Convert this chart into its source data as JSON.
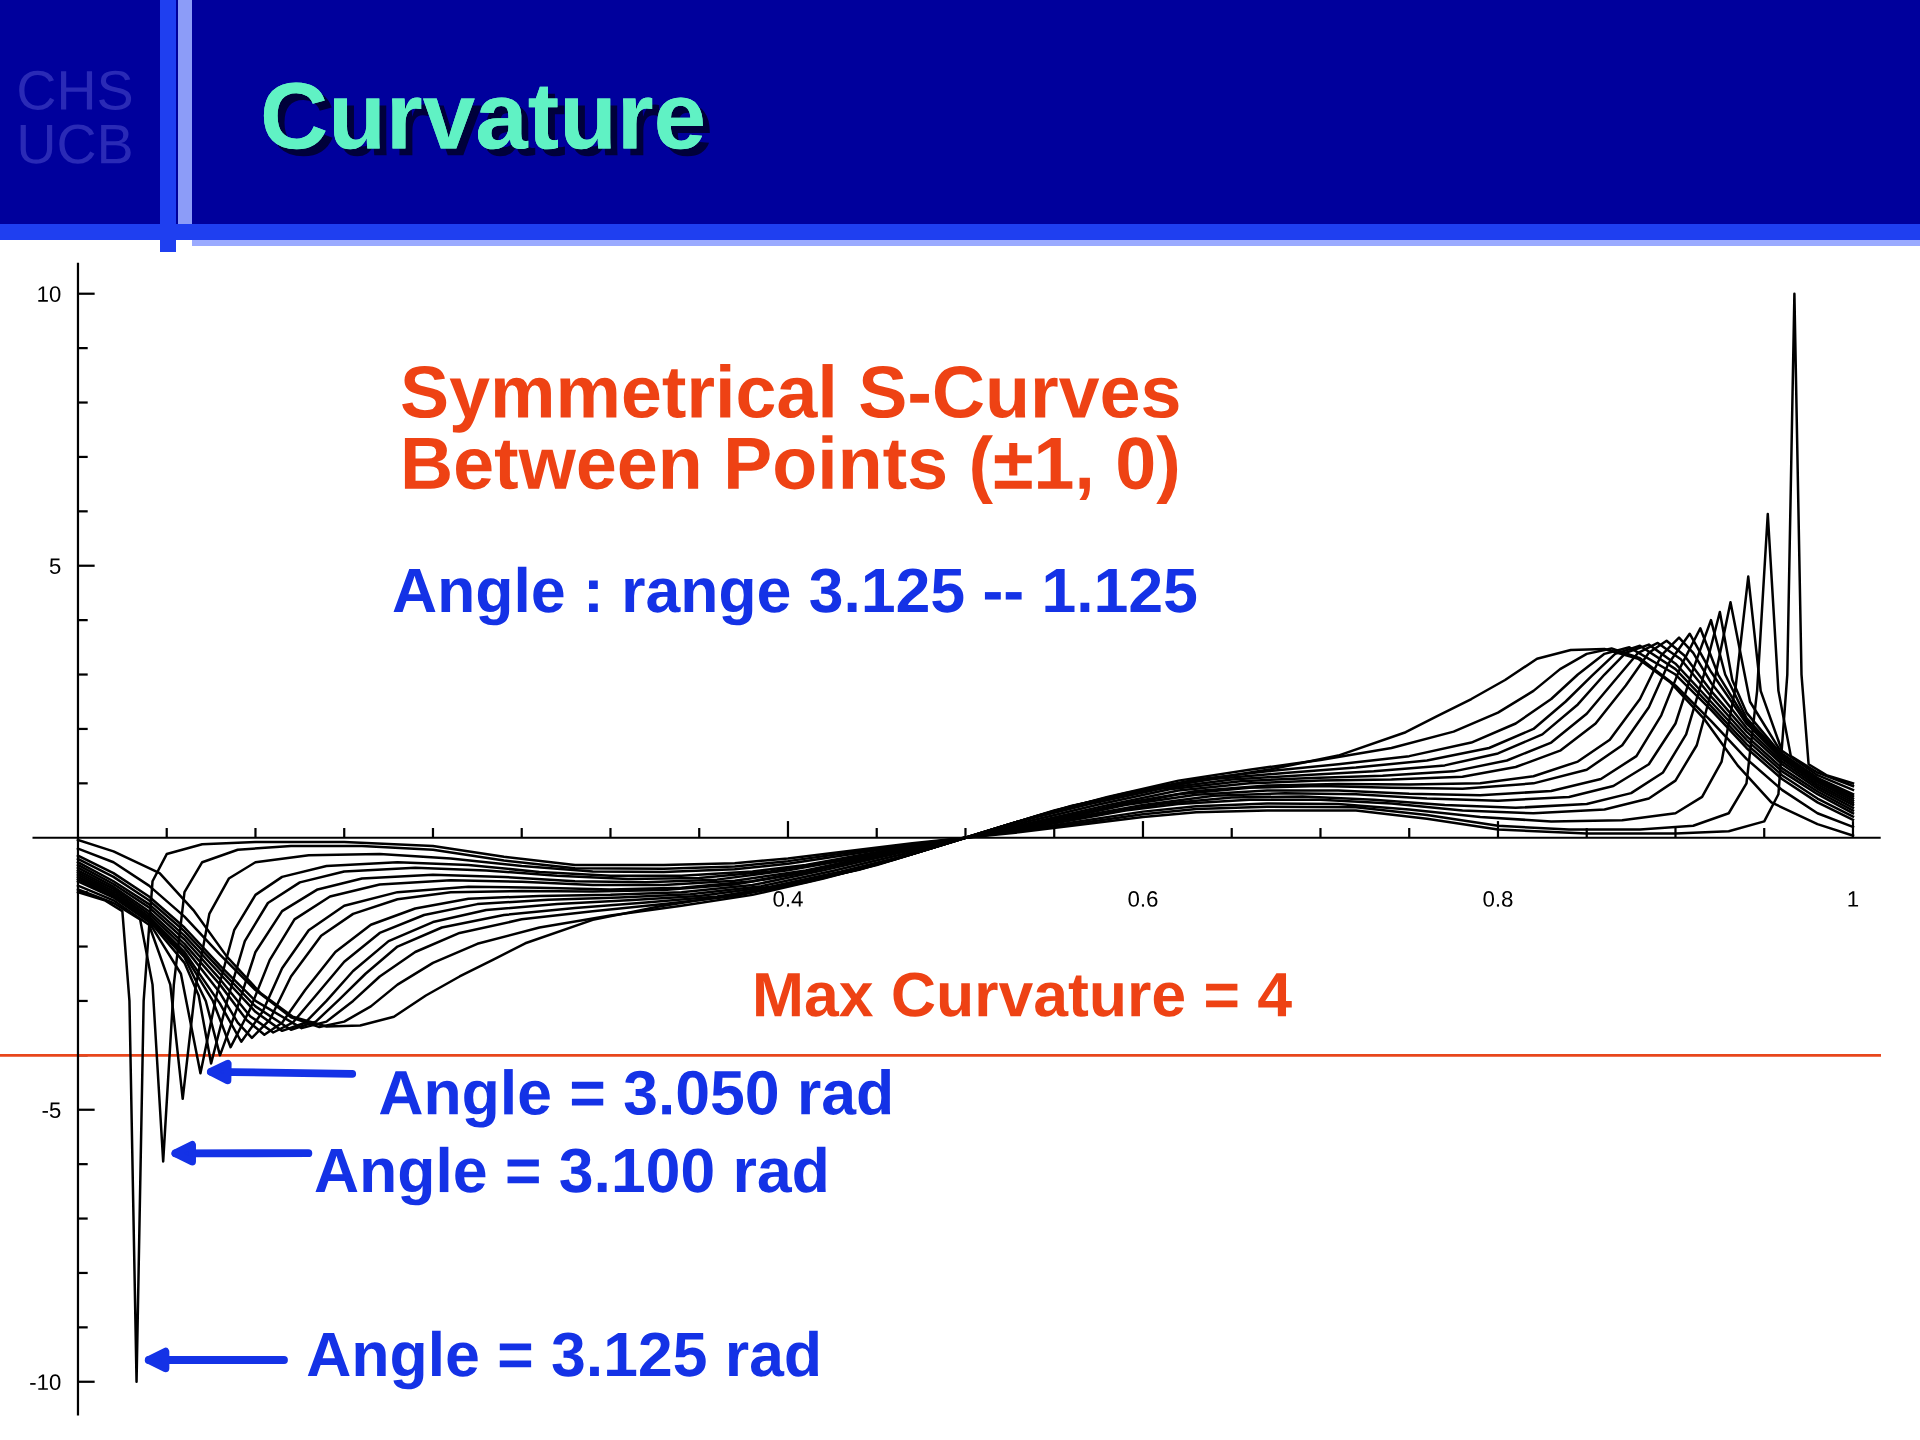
{
  "chart_data": {
    "type": "line",
    "title": "Curvature",
    "subtitle": "Symmetrical S-Curves\nBetween Points (±1, 0)",
    "annotations": [
      "Angle : range 3.125 -- 1.125",
      "Max Curvature = 4",
      "CHS\nUCB",
      {
        "text": "Angle = 3.050 rad",
        "x": 0.07,
        "y": -4.3
      },
      {
        "text": "Angle = 3.100 rad",
        "x": 0.05,
        "y": -5.8
      },
      {
        "text": "Angle = 3.125 rad",
        "x": 0.035,
        "y": -9.6
      }
    ],
    "xlim": [
      -0.025,
      1.015
    ],
    "ylim": [
      -10.6,
      10.55
    ],
    "xticks": [
      {
        "value": 0.05,
        "label": null
      },
      {
        "value": 0.1,
        "label": null
      },
      {
        "value": 0.15,
        "label": null
      },
      {
        "value": 0.2,
        "label": null
      },
      {
        "value": 0.25,
        "label": null
      },
      {
        "value": 0.3,
        "label": null
      },
      {
        "value": 0.35,
        "label": null
      },
      0.4,
      {
        "value": 0.45,
        "label": null
      },
      {
        "value": 0.5,
        "label": null
      },
      {
        "value": 0.55,
        "label": null
      },
      0.6,
      {
        "value": 0.65,
        "label": null
      },
      {
        "value": 0.7,
        "label": null
      },
      {
        "value": 0.75,
        "label": null
      },
      0.8,
      {
        "value": 0.85,
        "label": null
      },
      {
        "value": 0.9,
        "label": null
      },
      {
        "value": 0.95,
        "label": null
      },
      1
    ],
    "yticks": [
      -10,
      {
        "value": -9,
        "label": null
      },
      {
        "value": -8,
        "label": null
      },
      {
        "value": -7,
        "label": null
      },
      {
        "value": -6,
        "label": null
      },
      -5,
      {
        "value": -4,
        "label": null
      },
      {
        "value": -3,
        "label": null
      },
      {
        "value": -2,
        "label": null
      },
      {
        "value": -1,
        "label": null
      },
      {
        "value": 1,
        "label": null
      },
      {
        "value": 2,
        "label": null
      },
      {
        "value": 3,
        "label": null
      },
      {
        "value": 4,
        "label": null
      },
      5,
      {
        "value": 6,
        "label": null
      },
      {
        "value": 7,
        "label": null
      },
      {
        "value": 8,
        "label": null
      },
      {
        "value": 9,
        "label": null
      },
      10
    ],
    "ref_lines": [
      {
        "axis": "y",
        "value": -4,
        "color": "#e8461c"
      }
    ],
    "series": [
      {
        "color": "#000000",
        "x": [
          0,
          0.015,
          0.025,
          0.029,
          0.033,
          0.037,
          0.042,
          0.05,
          0.07,
          0.1,
          0.15,
          0.2,
          0.24,
          0.28,
          0.33,
          0.37,
          0.4,
          0.44,
          0.47,
          0.5,
          0.53,
          0.56,
          0.6,
          0.63,
          0.67,
          0.72,
          0.76,
          0.8,
          0.85,
          0.9,
          0.93,
          0.95,
          0.958,
          0.963,
          0.967,
          0.971,
          0.975,
          0.985,
          1
        ],
        "values": [
          -1.0,
          -1.15,
          -1.35,
          -3.0,
          -10.0,
          -3.0,
          -0.8,
          -0.3,
          -0.12,
          -0.08,
          -0.08,
          -0.15,
          -0.35,
          -0.5,
          -0.5,
          -0.47,
          -0.38,
          -0.22,
          -0.1,
          0,
          0.1,
          0.22,
          0.38,
          0.47,
          0.5,
          0.5,
          0.35,
          0.15,
          0.08,
          0.08,
          0.12,
          0.3,
          0.8,
          3.0,
          10.0,
          3.0,
          1.35,
          1.15,
          1.0
        ]
      },
      {
        "color": "#000000",
        "x": [
          0,
          0.02,
          0.035,
          0.042,
          0.048,
          0.054,
          0.06,
          0.07,
          0.09,
          0.12,
          0.16,
          0.2,
          0.24,
          0.28,
          0.33,
          0.37,
          0.4,
          0.44,
          0.47,
          0.5,
          0.53,
          0.56,
          0.6,
          0.63,
          0.67,
          0.72,
          0.76,
          0.8,
          0.84,
          0.88,
          0.91,
          0.93,
          0.94,
          0.946,
          0.952,
          0.958,
          0.965,
          0.98,
          1
        ],
        "values": [
          -0.95,
          -1.2,
          -1.5,
          -2.7,
          -5.95,
          -2.7,
          -1.0,
          -0.45,
          -0.22,
          -0.15,
          -0.15,
          -0.22,
          -0.42,
          -0.56,
          -0.57,
          -0.53,
          -0.43,
          -0.25,
          -0.12,
          0,
          0.12,
          0.25,
          0.43,
          0.53,
          0.57,
          0.56,
          0.42,
          0.22,
          0.15,
          0.15,
          0.22,
          0.45,
          1.0,
          2.7,
          5.95,
          2.7,
          1.5,
          1.2,
          0.95
        ]
      },
      {
        "color": "#000000",
        "x": [
          0,
          0.02,
          0.04,
          0.052,
          0.059,
          0.066,
          0.074,
          0.085,
          0.1,
          0.13,
          0.17,
          0.21,
          0.25,
          0.29,
          0.33,
          0.37,
          0.4,
          0.44,
          0.47,
          0.5,
          0.53,
          0.56,
          0.6,
          0.63,
          0.67,
          0.71,
          0.75,
          0.79,
          0.83,
          0.87,
          0.9,
          0.915,
          0.926,
          0.934,
          0.941,
          0.948,
          0.96,
          0.98,
          1
        ],
        "values": [
          -0.88,
          -1.15,
          -1.6,
          -2.7,
          -4.8,
          -2.8,
          -1.4,
          -0.75,
          -0.45,
          -0.32,
          -0.3,
          -0.38,
          -0.52,
          -0.62,
          -0.63,
          -0.58,
          -0.48,
          -0.28,
          -0.13,
          0,
          0.13,
          0.28,
          0.48,
          0.58,
          0.63,
          0.62,
          0.52,
          0.38,
          0.3,
          0.32,
          0.45,
          0.75,
          1.4,
          2.8,
          4.8,
          2.7,
          1.6,
          1.15,
          0.88
        ]
      },
      {
        "color": "#000000",
        "x": [
          0,
          0.02,
          0.04,
          0.058,
          0.069,
          0.078,
          0.088,
          0.1,
          0.115,
          0.14,
          0.18,
          0.22,
          0.26,
          0.3,
          0.34,
          0.38,
          0.41,
          0.44,
          0.47,
          0.5,
          0.53,
          0.56,
          0.59,
          0.62,
          0.66,
          0.7,
          0.74,
          0.78,
          0.82,
          0.86,
          0.885,
          0.9,
          0.912,
          0.922,
          0.931,
          0.942,
          0.96,
          0.98,
          1
        ],
        "values": [
          -0.8,
          -1.1,
          -1.55,
          -2.5,
          -4.33,
          -2.9,
          -1.7,
          -1.05,
          -0.72,
          -0.52,
          -0.45,
          -0.5,
          -0.63,
          -0.7,
          -0.7,
          -0.62,
          -0.5,
          -0.32,
          -0.15,
          0,
          0.15,
          0.32,
          0.5,
          0.62,
          0.7,
          0.7,
          0.63,
          0.5,
          0.45,
          0.52,
          0.72,
          1.05,
          1.7,
          2.9,
          4.33,
          2.5,
          1.55,
          1.1,
          0.8
        ]
      },
      {
        "color": "#000000",
        "x": [
          0,
          0.02,
          0.04,
          0.06,
          0.068,
          0.075,
          0.084,
          0.094,
          0.107,
          0.125,
          0.15,
          0.19,
          0.23,
          0.27,
          0.31,
          0.35,
          0.39,
          0.43,
          0.47,
          0.5,
          0.53,
          0.57,
          0.61,
          0.65,
          0.69,
          0.73,
          0.77,
          0.81,
          0.85,
          0.875,
          0.893,
          0.906,
          0.916,
          0.925,
          0.932,
          0.94,
          0.96,
          0.98,
          1
        ],
        "values": [
          -0.76,
          -1.08,
          -1.52,
          -2.3,
          -2.9,
          -4.15,
          -3.0,
          -1.9,
          -1.2,
          -0.82,
          -0.62,
          -0.55,
          -0.6,
          -0.7,
          -0.76,
          -0.74,
          -0.62,
          -0.4,
          -0.16,
          0,
          0.16,
          0.4,
          0.62,
          0.74,
          0.76,
          0.7,
          0.6,
          0.55,
          0.62,
          0.82,
          1.2,
          1.9,
          3.0,
          4.15,
          2.9,
          2.3,
          1.52,
          1.08,
          0.76
        ]
      },
      {
        "color": "#000000",
        "x": [
          0,
          0.02,
          0.04,
          0.06,
          0.072,
          0.08,
          0.09,
          0.1,
          0.115,
          0.135,
          0.16,
          0.2,
          0.24,
          0.28,
          0.32,
          0.36,
          0.4,
          0.44,
          0.47,
          0.5,
          0.53,
          0.56,
          0.6,
          0.64,
          0.68,
          0.72,
          0.76,
          0.8,
          0.84,
          0.865,
          0.885,
          0.9,
          0.91,
          0.92,
          0.928,
          0.94,
          0.96,
          0.98,
          1
        ],
        "values": [
          -0.72,
          -1.05,
          -1.5,
          -2.2,
          -3.0,
          -4.0,
          -3.1,
          -2.1,
          -1.35,
          -0.95,
          -0.75,
          -0.68,
          -0.72,
          -0.8,
          -0.82,
          -0.77,
          -0.6,
          -0.37,
          -0.17,
          0,
          0.17,
          0.37,
          0.6,
          0.77,
          0.82,
          0.8,
          0.72,
          0.68,
          0.75,
          0.95,
          1.35,
          2.1,
          3.1,
          4.0,
          3.0,
          2.2,
          1.5,
          1.05,
          0.72
        ]
      },
      {
        "color": "#000000",
        "x": [
          0,
          0.02,
          0.04,
          0.06,
          0.076,
          0.086,
          0.097,
          0.108,
          0.122,
          0.142,
          0.17,
          0.21,
          0.25,
          0.29,
          0.33,
          0.37,
          0.41,
          0.45,
          0.5,
          0.55,
          0.59,
          0.63,
          0.67,
          0.71,
          0.75,
          0.79,
          0.83,
          0.858,
          0.878,
          0.892,
          0.903,
          0.914,
          0.924,
          0.94,
          0.96,
          0.98,
          1
        ],
        "values": [
          -0.68,
          -1.02,
          -1.48,
          -2.15,
          -3.0,
          -3.85,
          -3.15,
          -2.25,
          -1.5,
          -1.08,
          -0.86,
          -0.78,
          -0.81,
          -0.87,
          -0.87,
          -0.79,
          -0.6,
          -0.32,
          0,
          0.32,
          0.6,
          0.79,
          0.87,
          0.87,
          0.81,
          0.78,
          0.86,
          1.08,
          1.5,
          2.25,
          3.15,
          3.85,
          3.0,
          2.15,
          1.48,
          1.02,
          0.68
        ]
      },
      {
        "color": "#000000",
        "x": [
          0,
          0.02,
          0.04,
          0.06,
          0.08,
          0.092,
          0.104,
          0.115,
          0.13,
          0.15,
          0.18,
          0.22,
          0.26,
          0.3,
          0.34,
          0.38,
          0.42,
          0.46,
          0.5,
          0.54,
          0.58,
          0.62,
          0.66,
          0.7,
          0.74,
          0.78,
          0.82,
          0.85,
          0.87,
          0.885,
          0.896,
          0.908,
          0.92,
          0.94,
          0.96,
          0.98,
          1
        ],
        "values": [
          -0.64,
          -0.98,
          -1.45,
          -2.1,
          -3.05,
          -3.75,
          -3.2,
          -2.4,
          -1.7,
          -1.25,
          -1.0,
          -0.9,
          -0.92,
          -0.95,
          -0.92,
          -0.8,
          -0.55,
          -0.27,
          0,
          0.27,
          0.55,
          0.8,
          0.92,
          0.95,
          0.92,
          0.9,
          1.0,
          1.25,
          1.7,
          2.4,
          3.2,
          3.75,
          3.05,
          2.1,
          1.45,
          0.98,
          0.64
        ]
      },
      {
        "color": "#000000",
        "x": [
          0,
          0.02,
          0.04,
          0.06,
          0.08,
          0.09,
          0.098,
          0.108,
          0.12,
          0.137,
          0.155,
          0.18,
          0.21,
          0.25,
          0.29,
          0.33,
          0.37,
          0.41,
          0.45,
          0.5,
          0.55,
          0.59,
          0.63,
          0.67,
          0.71,
          0.75,
          0.79,
          0.82,
          0.845,
          0.863,
          0.88,
          0.892,
          0.902,
          0.91,
          0.92,
          0.94,
          0.96,
          0.98,
          1
        ],
        "values": [
          -0.6,
          -0.94,
          -1.4,
          -2.02,
          -2.85,
          -3.4,
          -3.68,
          -3.35,
          -2.55,
          -1.8,
          -1.4,
          -1.13,
          -1.0,
          -0.98,
          -0.99,
          -0.96,
          -0.86,
          -0.64,
          -0.34,
          0,
          0.34,
          0.64,
          0.86,
          0.96,
          0.99,
          0.98,
          1.0,
          1.13,
          1.4,
          1.8,
          2.55,
          3.35,
          3.68,
          3.4,
          2.85,
          2.02,
          1.4,
          0.94,
          0.6
        ]
      },
      {
        "color": "#000000",
        "x": [
          0,
          0.02,
          0.04,
          0.06,
          0.08,
          0.095,
          0.105,
          0.115,
          0.128,
          0.145,
          0.165,
          0.19,
          0.22,
          0.26,
          0.3,
          0.34,
          0.38,
          0.42,
          0.46,
          0.5,
          0.54,
          0.58,
          0.62,
          0.66,
          0.7,
          0.74,
          0.78,
          0.81,
          0.835,
          0.855,
          0.872,
          0.885,
          0.895,
          0.905,
          0.92,
          0.94,
          0.96,
          0.98,
          1
        ],
        "values": [
          -0.55,
          -0.9,
          -1.35,
          -1.95,
          -2.7,
          -3.35,
          -3.62,
          -3.4,
          -2.8,
          -2.1,
          -1.6,
          -1.3,
          -1.12,
          -1.07,
          -1.05,
          -1.0,
          -0.87,
          -0.6,
          -0.3,
          0,
          0.3,
          0.6,
          0.87,
          1.0,
          1.05,
          1.07,
          1.12,
          1.3,
          1.6,
          2.1,
          2.8,
          3.4,
          3.62,
          3.35,
          2.7,
          1.95,
          1.35,
          0.9,
          0.55
        ]
      },
      {
        "color": "#000000",
        "x": [
          0,
          0.02,
          0.04,
          0.06,
          0.08,
          0.097,
          0.11,
          0.121,
          0.134,
          0.15,
          0.17,
          0.195,
          0.225,
          0.265,
          0.305,
          0.345,
          0.385,
          0.425,
          0.465,
          0.5,
          0.535,
          0.575,
          0.615,
          0.655,
          0.695,
          0.735,
          0.775,
          0.805,
          0.83,
          0.85,
          0.866,
          0.879,
          0.89,
          0.903,
          0.92,
          0.94,
          0.96,
          0.98,
          1
        ],
        "values": [
          -0.5,
          -0.85,
          -1.28,
          -1.87,
          -2.6,
          -3.28,
          -3.58,
          -3.4,
          -2.9,
          -2.28,
          -1.75,
          -1.42,
          -1.22,
          -1.14,
          -1.1,
          -1.04,
          -0.89,
          -0.61,
          -0.3,
          0,
          0.3,
          0.61,
          0.89,
          1.04,
          1.1,
          1.14,
          1.22,
          1.42,
          1.75,
          2.28,
          2.9,
          3.4,
          3.58,
          3.28,
          2.6,
          1.87,
          1.28,
          0.85,
          0.5
        ]
      },
      {
        "color": "#000000",
        "x": [
          0,
          0.02,
          0.04,
          0.06,
          0.08,
          0.1,
          0.115,
          0.128,
          0.14,
          0.155,
          0.175,
          0.2,
          0.23,
          0.27,
          0.31,
          0.35,
          0.39,
          0.43,
          0.47,
          0.5,
          0.53,
          0.57,
          0.61,
          0.65,
          0.69,
          0.73,
          0.77,
          0.8,
          0.825,
          0.845,
          0.86,
          0.872,
          0.885,
          0.9,
          0.92,
          0.94,
          0.96,
          0.98,
          1
        ],
        "values": [
          -0.45,
          -0.8,
          -1.22,
          -1.8,
          -2.5,
          -3.2,
          -3.55,
          -3.4,
          -3.0,
          -2.45,
          -1.9,
          -1.55,
          -1.33,
          -1.22,
          -1.15,
          -1.07,
          -0.9,
          -0.62,
          -0.3,
          0,
          0.3,
          0.62,
          0.9,
          1.07,
          1.15,
          1.22,
          1.33,
          1.55,
          1.9,
          2.45,
          3.0,
          3.4,
          3.55,
          3.2,
          2.5,
          1.8,
          1.22,
          0.8,
          0.45
        ]
      },
      {
        "color": "#000000",
        "x": [
          0,
          0.02,
          0.04,
          0.06,
          0.08,
          0.1,
          0.12,
          0.134,
          0.147,
          0.162,
          0.18,
          0.205,
          0.24,
          0.28,
          0.32,
          0.36,
          0.4,
          0.44,
          0.47,
          0.5,
          0.53,
          0.56,
          0.6,
          0.64,
          0.68,
          0.72,
          0.76,
          0.795,
          0.82,
          0.838,
          0.853,
          0.866,
          0.88,
          0.9,
          0.92,
          0.94,
          0.96,
          0.98,
          1
        ],
        "values": [
          -0.39,
          -0.72,
          -1.15,
          -1.72,
          -2.42,
          -3.1,
          -3.53,
          -3.38,
          -2.98,
          -2.5,
          -2.0,
          -1.65,
          -1.42,
          -1.29,
          -1.19,
          -1.08,
          -0.88,
          -0.58,
          -0.3,
          0,
          0.3,
          0.58,
          0.88,
          1.08,
          1.19,
          1.29,
          1.42,
          1.65,
          2.0,
          2.5,
          2.98,
          3.38,
          3.53,
          3.1,
          2.42,
          1.72,
          1.15,
          0.72,
          0.39
        ]
      },
      {
        "color": "#000000",
        "x": [
          0,
          0.02,
          0.04,
          0.06,
          0.08,
          0.1,
          0.126,
          0.14,
          0.155,
          0.17,
          0.19,
          0.215,
          0.25,
          0.29,
          0.33,
          0.37,
          0.41,
          0.45,
          0.5,
          0.55,
          0.59,
          0.63,
          0.67,
          0.71,
          0.75,
          0.785,
          0.81,
          0.83,
          0.845,
          0.86,
          0.874,
          0.9,
          0.92,
          0.94,
          0.96,
          0.98,
          1
        ],
        "values": [
          -0.33,
          -0.65,
          -1.08,
          -1.65,
          -2.35,
          -3.0,
          -3.5,
          -3.38,
          -3.0,
          -2.55,
          -2.1,
          -1.75,
          -1.5,
          -1.35,
          -1.22,
          -1.07,
          -0.82,
          -0.5,
          0,
          0.5,
          0.82,
          1.07,
          1.22,
          1.35,
          1.5,
          1.75,
          2.1,
          2.55,
          3.0,
          3.38,
          3.5,
          3.0,
          2.35,
          1.65,
          1.08,
          0.65,
          0.33
        ]
      },
      {
        "color": "#000000",
        "x": [
          0,
          0.02,
          0.04,
          0.06,
          0.08,
          0.1,
          0.12,
          0.136,
          0.15,
          0.165,
          0.18,
          0.2,
          0.225,
          0.26,
          0.3,
          0.34,
          0.38,
          0.42,
          0.46,
          0.5,
          0.54,
          0.58,
          0.62,
          0.66,
          0.7,
          0.74,
          0.775,
          0.8,
          0.82,
          0.835,
          0.85,
          0.864,
          0.88,
          0.9,
          0.92,
          0.94,
          0.96,
          0.98,
          1
        ],
        "values": [
          -0.2,
          -0.45,
          -0.88,
          -1.45,
          -2.15,
          -2.8,
          -3.3,
          -3.48,
          -3.38,
          -3.1,
          -2.7,
          -2.3,
          -1.95,
          -1.65,
          -1.43,
          -1.25,
          -1.05,
          -0.75,
          -0.4,
          0,
          0.4,
          0.75,
          1.05,
          1.25,
          1.43,
          1.65,
          1.95,
          2.3,
          2.7,
          3.1,
          3.38,
          3.48,
          3.3,
          2.8,
          2.15,
          1.45,
          0.88,
          0.45,
          0.2
        ]
      },
      {
        "color": "#000000",
        "x": [
          0,
          0.02,
          0.046,
          0.065,
          0.084,
          0.103,
          0.121,
          0.14,
          0.159,
          0.178,
          0.196,
          0.215,
          0.234,
          0.252,
          0.29,
          0.328,
          0.365,
          0.403,
          0.44,
          0.478,
          0.5,
          0.522,
          0.56,
          0.597,
          0.635,
          0.672,
          0.71,
          0.748,
          0.766,
          0.785,
          0.804,
          0.822,
          0.841,
          0.86,
          0.879,
          0.897,
          0.916,
          0.935,
          0.954,
          0.98,
          1
        ],
        "values": [
          -0.04,
          -0.25,
          -0.65,
          -1.33,
          -2.19,
          -2.86,
          -3.29,
          -3.47,
          -3.45,
          -3.29,
          -2.9,
          -2.55,
          -2.24,
          -1.94,
          -1.51,
          -1.26,
          -1.07,
          -0.84,
          -0.59,
          -0.22,
          0,
          0.22,
          0.59,
          0.84,
          1.07,
          1.26,
          1.51,
          1.94,
          2.24,
          2.55,
          2.9,
          3.29,
          3.45,
          3.47,
          3.29,
          2.86,
          2.19,
          1.33,
          0.65,
          0.25,
          0.04
        ]
      }
    ]
  }
}
